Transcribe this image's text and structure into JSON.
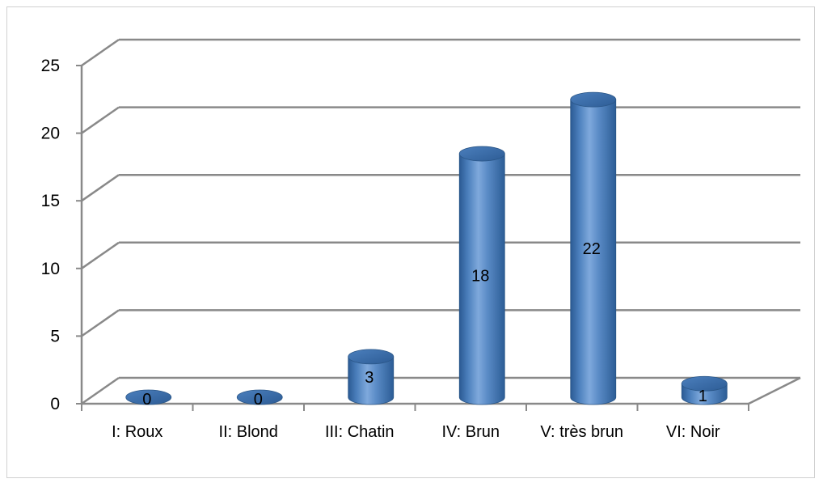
{
  "chart_data": {
    "type": "bar",
    "style": "3d-cylinder",
    "categories": [
      "I: Roux",
      "II: Blond",
      "III: Chatin",
      "IV: Brun",
      "V: très brun",
      "VI: Noir"
    ],
    "values": [
      0,
      0,
      3,
      18,
      22,
      1
    ],
    "data_labels": [
      "0",
      "0",
      "3",
      "18",
      "22",
      "1"
    ],
    "yticks": [
      "0",
      "5",
      "10",
      "15",
      "20",
      "25"
    ],
    "ylim": [
      0,
      25
    ],
    "title": "",
    "xlabel": "",
    "ylabel": "",
    "grid": true,
    "legend": "none",
    "colors": {
      "bar_body": "#4a7ebb",
      "bar_top": "#2f5f9a",
      "bar_highlight": "#7fa9dc",
      "bar_shadow": "#244d7d",
      "gridline": "#898989",
      "axis": "#898989"
    }
  }
}
